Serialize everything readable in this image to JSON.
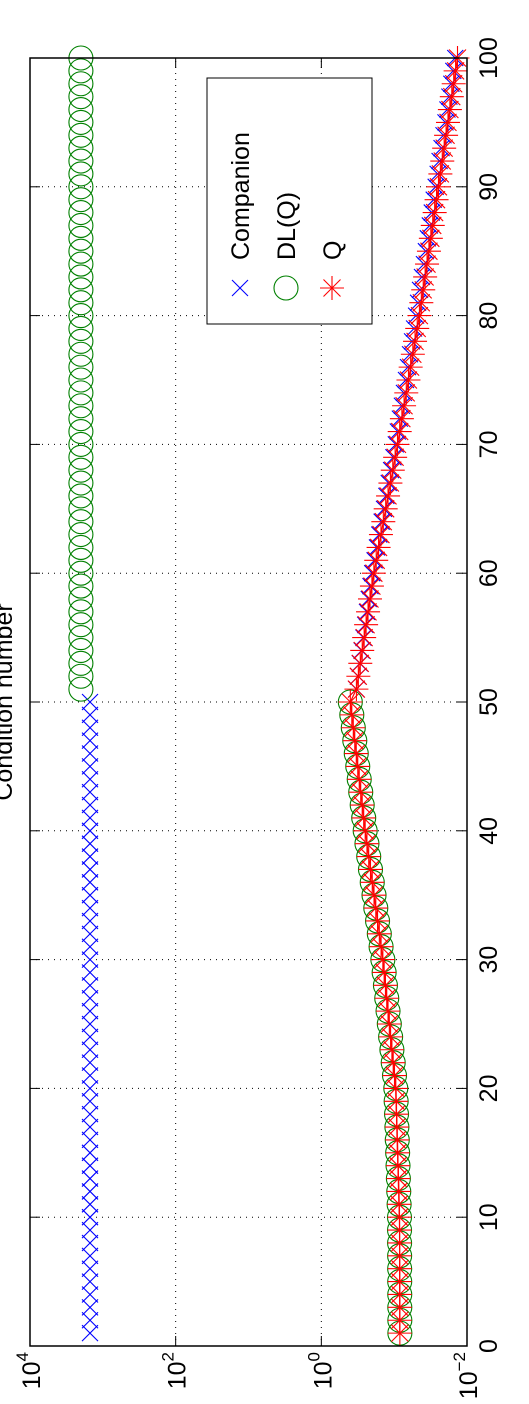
{
  "chart_data": {
    "type": "scatter",
    "title": "Condition number",
    "xlabel": "",
    "ylabel": "",
    "xlim": [
      0,
      100
    ],
    "ylim": [
      0.01,
      10000
    ],
    "yscale": "log",
    "orientation": "rotated 90 degrees counter-clockwise",
    "grid": true,
    "legend_position": "top-right",
    "x_ticks": [
      "0",
      "10",
      "20",
      "30",
      "40",
      "50",
      "60",
      "70",
      "80",
      "90",
      "100"
    ],
    "y_ticks": [
      {
        "base": "10",
        "exp": "4"
      },
      {
        "base": "10",
        "exp": "2"
      },
      {
        "base": "10",
        "exp": "0"
      },
      {
        "base": "10",
        "exp": "−2"
      }
    ],
    "series": [
      {
        "name": "Companion",
        "marker": "x",
        "color": "#0000ff",
        "segments": [
          {
            "x_start": 1,
            "x_end": 50,
            "y_start": 1500,
            "y_end": 1500
          },
          {
            "x_start": 51,
            "x_end": 60,
            "y_start": 0.33,
            "y_end": 0.2
          },
          {
            "x_start": 60,
            "x_end": 70,
            "y_start": 0.2,
            "y_end": 0.095
          },
          {
            "x_start": 70,
            "x_end": 80,
            "y_start": 0.095,
            "y_end": 0.05
          },
          {
            "x_start": 80,
            "x_end": 100,
            "y_start": 0.05,
            "y_end": 0.0145
          }
        ]
      },
      {
        "name": "DL(Q)",
        "marker": "o",
        "color": "#008000",
        "segments": [
          {
            "x_start": 1,
            "x_end": 10,
            "y_start": 0.0835,
            "y_end": 0.0845
          },
          {
            "x_start": 10,
            "x_end": 20,
            "y_start": 0.0845,
            "y_end": 0.095
          },
          {
            "x_start": 20,
            "x_end": 30,
            "y_start": 0.095,
            "y_end": 0.143
          },
          {
            "x_start": 30,
            "x_end": 40,
            "y_start": 0.143,
            "y_end": 0.25
          },
          {
            "x_start": 40,
            "x_end": 50,
            "y_start": 0.25,
            "y_end": 0.4
          },
          {
            "x_start": 51,
            "x_end": 100,
            "y_start": 2000,
            "y_end": 2000
          }
        ]
      },
      {
        "name": "Q",
        "marker": "*",
        "color": "#ff0000",
        "segments": [
          {
            "x_start": 1,
            "x_end": 10,
            "y_start": 0.0835,
            "y_end": 0.0845
          },
          {
            "x_start": 10,
            "x_end": 20,
            "y_start": 0.0845,
            "y_end": 0.095
          },
          {
            "x_start": 20,
            "x_end": 30,
            "y_start": 0.095,
            "y_end": 0.143
          },
          {
            "x_start": 30,
            "x_end": 40,
            "y_start": 0.143,
            "y_end": 0.25
          },
          {
            "x_start": 40,
            "x_end": 50,
            "y_start": 0.25,
            "y_end": 0.4
          },
          {
            "x_start": 51,
            "x_end": 60,
            "y_start": 0.33,
            "y_end": 0.19
          },
          {
            "x_start": 60,
            "x_end": 70,
            "y_start": 0.19,
            "y_end": 0.09
          },
          {
            "x_start": 70,
            "x_end": 80,
            "y_start": 0.09,
            "y_end": 0.045
          },
          {
            "x_start": 80,
            "x_end": 100,
            "y_start": 0.045,
            "y_end": 0.0135
          }
        ]
      }
    ]
  }
}
